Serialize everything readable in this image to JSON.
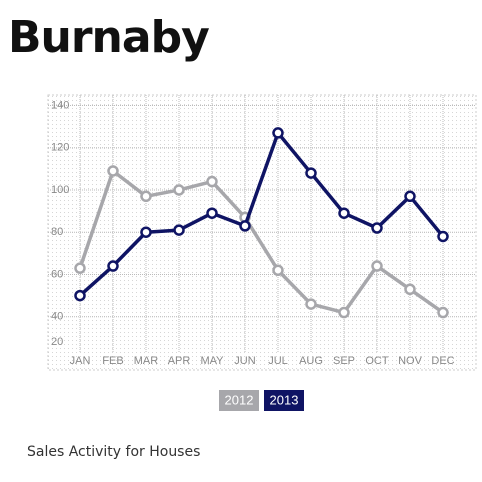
{
  "chart_data": {
    "type": "line",
    "title": "Burnaby",
    "subtitle": "Sales Activity for Houses",
    "categories": [
      "JAN",
      "FEB",
      "MAR",
      "APR",
      "MAY",
      "JUN",
      "JUL",
      "AUG",
      "SEP",
      "OCT",
      "NOV",
      "DEC"
    ],
    "series": [
      {
        "name": "2012",
        "color": "#a7a7ab",
        "values": [
          63,
          109,
          97,
          100,
          104,
          87,
          62,
          46,
          42,
          64,
          53,
          42
        ]
      },
      {
        "name": "2013",
        "color": "#0f1464",
        "values": [
          50,
          64,
          80,
          81,
          89,
          83,
          127,
          108,
          89,
          82,
          97,
          78
        ]
      }
    ],
    "ylim": [
      20,
      144
    ],
    "yticks": [
      20,
      40,
      60,
      80,
      100,
      120,
      140
    ],
    "grid": true
  }
}
